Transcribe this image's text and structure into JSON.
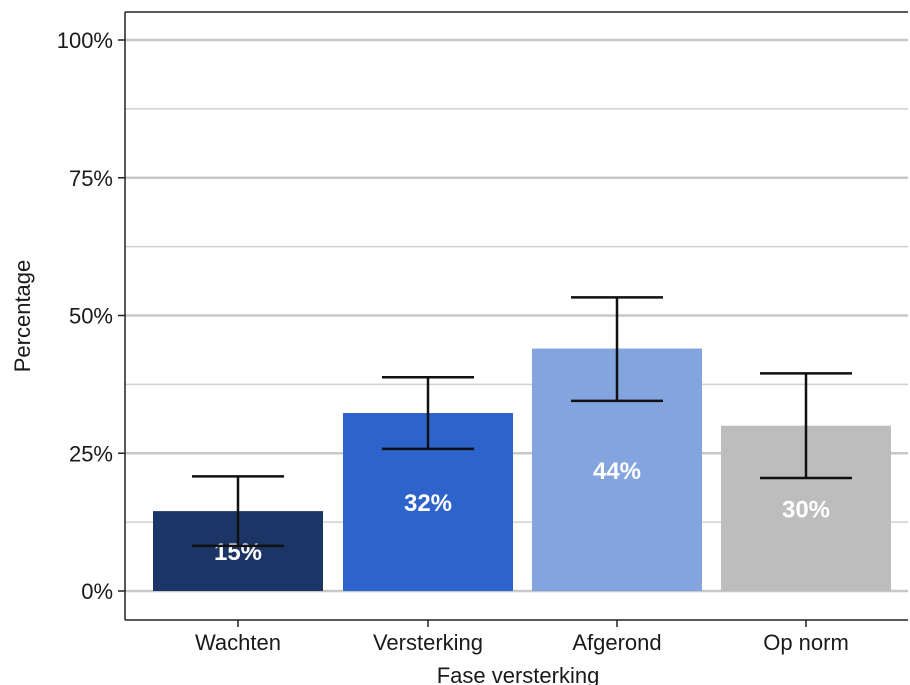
{
  "chart_data": {
    "type": "bar",
    "title": "",
    "xlabel": "Fase versterking",
    "ylabel": "Percentage",
    "ylim": [
      0,
      100
    ],
    "yticks": [
      0,
      25,
      50,
      75,
      100
    ],
    "ytick_labels": [
      "0%",
      "25%",
      "50%",
      "75%",
      "100%"
    ],
    "minor_gridlines": [
      12.5,
      37.5,
      62.5,
      87.5
    ],
    "grid": true,
    "legend": "none",
    "categories": [
      "Wachten",
      "Versterking",
      "Afgerond",
      "Op norm"
    ],
    "values": [
      14.5,
      32.3,
      44.0,
      30.0
    ],
    "data_labels": [
      "15%",
      "32%",
      "44%",
      "30%"
    ],
    "error_low": [
      8.2,
      25.8,
      34.5,
      20.5
    ],
    "error_high": [
      20.8,
      38.8,
      53.3,
      39.5
    ],
    "colors": [
      "#1b3566",
      "#2e63cc",
      "#84a4e0",
      "#bdbdbd"
    ]
  }
}
